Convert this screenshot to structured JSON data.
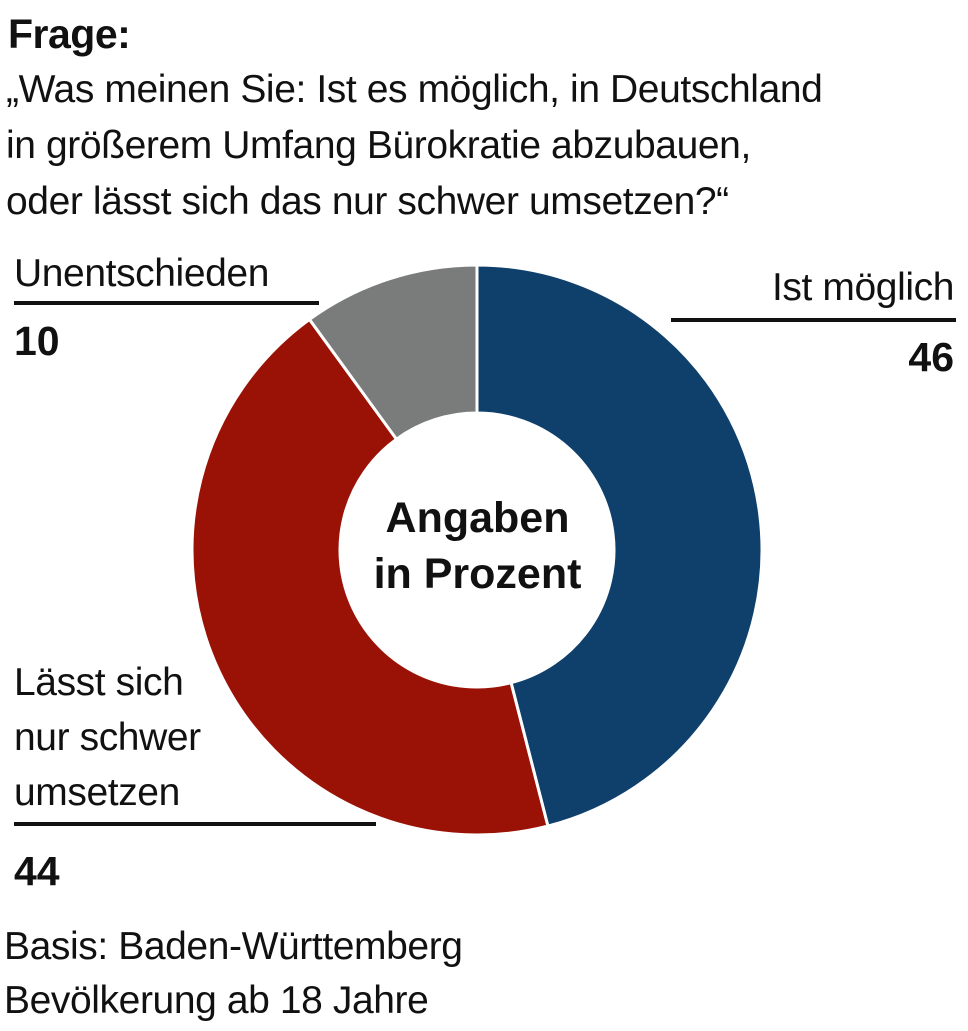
{
  "heading": "Frage:",
  "question_lines": [
    "„Was meinen Sie: Ist es möglich, in Deutschland",
    "in größerem Umfang Bürokratie abzubauen,",
    "oder lässt sich das nur schwer umsetzen?“"
  ],
  "center_label": [
    "Angaben",
    "in Prozent"
  ],
  "footer_lines": [
    "Basis: Baden-Württemberg",
    "Bevölkerung ab 18 Jahre"
  ],
  "chart_data": {
    "type": "pie",
    "variant": "donut",
    "unit": "Prozent",
    "slices": [
      {
        "label": "Ist möglich",
        "value": 46,
        "value_label": "46",
        "color": "#0f3f6b"
      },
      {
        "label": "Lässt sich nur schwer umsetzen",
        "label_lines": [
          "Lässt sich",
          "nur schwer",
          "umsetzen"
        ],
        "value": 44,
        "value_label": "44",
        "color": "#9a1206"
      },
      {
        "label": "Unentschieden",
        "value": 10,
        "value_label": "10",
        "color": "#7a7b7b"
      }
    ]
  }
}
